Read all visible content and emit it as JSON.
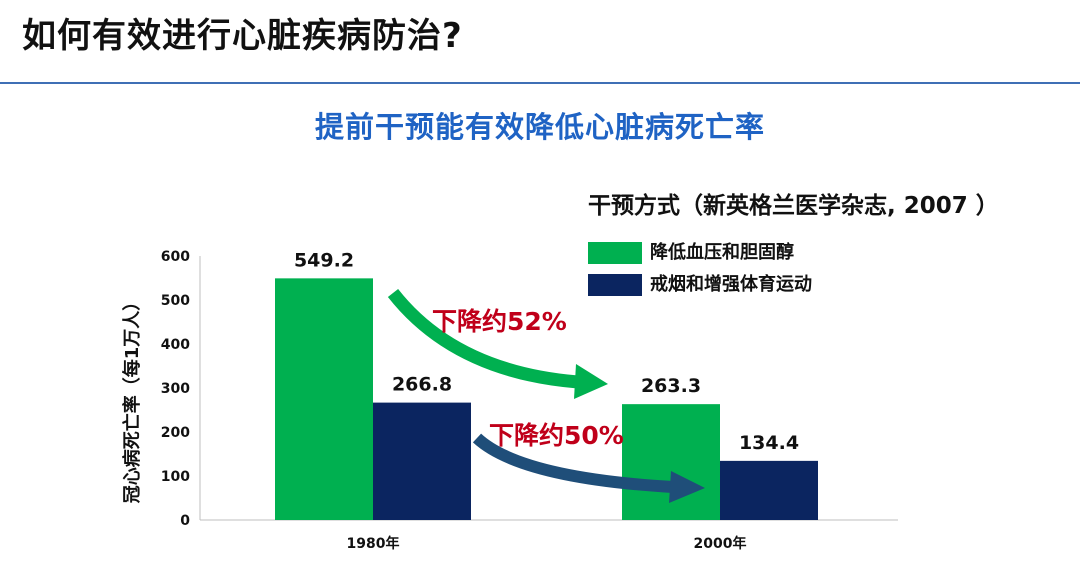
{
  "header": {
    "title": "如何有效进行心脏疾病防治?"
  },
  "chart_data": {
    "type": "bar",
    "title": "提前干预能有效降低心脏病死亡率",
    "legend_title": "干预方式（新英格兰医学杂志, 2007 ）",
    "legend_position": "top-right",
    "categories": [
      "1980年",
      "2000年"
    ],
    "series": [
      {
        "name": "降低血压和胆固醇",
        "color": "#00b050",
        "values": [
          549.2,
          263.3
        ],
        "labels": [
          "549.2",
          "263.3"
        ]
      },
      {
        "name": "戒烟和增强体育运动",
        "color": "#0b2560",
        "values": [
          266.8,
          134.4
        ],
        "labels": [
          "266.8",
          "134.4"
        ]
      }
    ],
    "ylabel": "冠心病死亡率（每1万人）",
    "xlabel": "",
    "ylim": [
      0,
      600
    ],
    "yticks": [
      "0",
      "100",
      "200",
      "300",
      "400",
      "500",
      "600"
    ],
    "grid": false,
    "annotations": [
      {
        "text": "下降约52%",
        "color": "#c0001a",
        "arrow_color": "#00b050"
      },
      {
        "text": "下降约50%",
        "color": "#c0001a",
        "arrow_color": "#1f4e79"
      }
    ]
  }
}
